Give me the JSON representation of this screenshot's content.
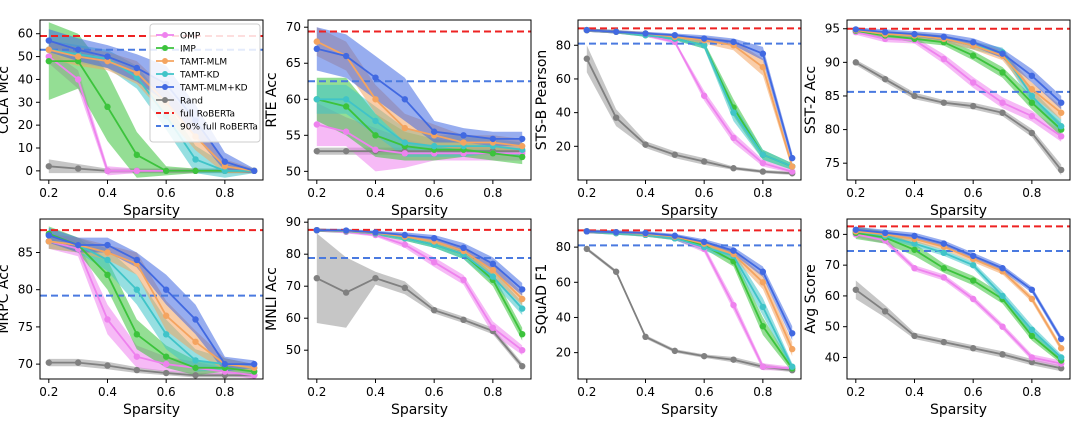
{
  "chart_data": {
    "type": "line",
    "shared_xlabel": "Sparsity",
    "x_ticks": [
      "0.2",
      "0.4",
      "0.6",
      "0.8"
    ],
    "series_names": [
      "OMP",
      "IMP",
      "TAMT-MLM",
      "TAMT-KD",
      "TAMT-MLM+KD",
      "Rand"
    ],
    "series_colors": [
      "#ee82ee",
      "#3cc33c",
      "#f4a460",
      "#40c4c8",
      "#4169e1",
      "#808080"
    ],
    "reference_lines": [
      {
        "name": "full RoBERTa",
        "color": "#ee2222"
      },
      {
        "name": "90% full RoBERTa",
        "color": "#4a7ae0"
      }
    ],
    "x": [
      0.2,
      0.3,
      0.4,
      0.5,
      0.6,
      0.7,
      0.8,
      0.9
    ],
    "panels": [
      {
        "id": "cola",
        "ylabel": "CoLA Mcc",
        "ylim": [
          -4,
          66
        ],
        "yticks": [
          "0",
          "10",
          "20",
          "30",
          "40",
          "50",
          "60"
        ],
        "full": 59,
        "ninety": 53,
        "band_alpha": 0.55,
        "series": {
          "OMP": [
            50,
            40,
            0,
            0,
            0,
            0,
            0,
            0
          ],
          "IMP": [
            48,
            48,
            28,
            7,
            0,
            0,
            0,
            0
          ],
          "TAMT-MLM": [
            53,
            50,
            48,
            43,
            30,
            15,
            2,
            0
          ],
          "TAMT-KD": [
            53,
            51,
            49,
            41,
            24,
            5,
            0,
            0
          ],
          "TAMT-MLM+KD": [
            57,
            53,
            50,
            45,
            38,
            22,
            4,
            0
          ],
          "Rand": [
            2,
            1,
            0,
            0,
            0,
            0,
            0,
            0
          ]
        },
        "bands": {
          "IMP": [
            17,
            12,
            15,
            10,
            2,
            1,
            1,
            1
          ],
          "TAMT-MLM+KD": [
            5,
            5,
            5,
            6,
            8,
            7,
            4,
            1
          ],
          "TAMT-MLM": [
            4,
            4,
            4,
            5,
            6,
            6,
            3,
            1
          ],
          "TAMT-KD": [
            4,
            4,
            4,
            5,
            6,
            6,
            3,
            1
          ],
          "OMP": [
            3,
            4,
            2,
            1,
            1,
            1,
            1,
            1
          ],
          "Rand": [
            3,
            2,
            1,
            1,
            1,
            1,
            1,
            1
          ]
        }
      },
      {
        "id": "rte",
        "ylabel": "RTE Acc",
        "ylim": [
          48.8,
          71
        ],
        "yticks": [
          "50",
          "55",
          "60",
          "65",
          "70"
        ],
        "full": 69.4,
        "ninety": 62.5,
        "band_alpha": 0.55,
        "series": {
          "OMP": [
            56.5,
            55.5,
            53,
            52.5,
            52.5,
            52.5,
            52.5,
            52.5
          ],
          "IMP": [
            60,
            59,
            55,
            53.5,
            53,
            53,
            52.5,
            52
          ],
          "TAMT-MLM": [
            68,
            66,
            60,
            56,
            55,
            54,
            54,
            53.5
          ],
          "TAMT-KD": [
            60,
            60,
            57,
            54,
            53.5,
            53.5,
            53.5,
            53
          ],
          "TAMT-MLM+KD": [
            67,
            66,
            63,
            60,
            55.5,
            55,
            54.5,
            54.5
          ],
          "Rand": [
            52.8,
            52.8,
            52.8,
            52.8,
            52.8,
            52.8,
            52.8,
            52.8
          ]
        },
        "bands": {
          "IMP": [
            3,
            4,
            3,
            2,
            1.5,
            1,
            1,
            1
          ],
          "TAMT-MLM+KD": [
            3,
            3,
            3,
            3,
            1.5,
            1,
            1,
            1
          ],
          "TAMT-MLM": [
            2,
            2,
            2,
            2,
            1.5,
            1,
            1,
            1
          ],
          "TAMT-KD": [
            2,
            2,
            2,
            2,
            1.5,
            1.5,
            1,
            1
          ],
          "OMP": [
            3,
            2,
            3,
            2,
            1,
            1,
            1,
            1
          ],
          "Rand": [
            0.5,
            0.5,
            0.5,
            0.5,
            0.5,
            0.5,
            0.5,
            0.5
          ]
        }
      },
      {
        "id": "stsb",
        "ylabel": "STS-B Pearson",
        "ylim": [
          0,
          95
        ],
        "yticks": [
          "20",
          "40",
          "60",
          "80"
        ],
        "full": 90,
        "ninety": 81,
        "band_alpha": 0.55,
        "series": {
          "OMP": [
            89,
            88,
            86,
            82,
            50,
            25,
            10,
            5
          ],
          "IMP": [
            89,
            88,
            86,
            84,
            80,
            43,
            15,
            8
          ],
          "TAMT-MLM": [
            89,
            88,
            87,
            85,
            83,
            80,
            67,
            8
          ],
          "TAMT-KD": [
            89,
            88,
            86,
            84,
            80,
            40,
            15,
            8
          ],
          "TAMT-MLM+KD": [
            89,
            88,
            87,
            86,
            84,
            82,
            75,
            13
          ],
          "Rand": [
            72,
            37,
            21,
            15,
            11,
            7,
            5,
            4
          ]
        },
        "bands": {
          "IMP": [
            1,
            1,
            1,
            1,
            2,
            5,
            3,
            2
          ],
          "TAMT-MLM+KD": [
            1,
            1,
            1,
            1,
            2,
            2,
            4,
            3
          ],
          "TAMT-MLM": [
            1,
            1,
            1,
            1,
            2,
            3,
            5,
            2
          ],
          "TAMT-KD": [
            1,
            1,
            1,
            1,
            2,
            5,
            3,
            2
          ],
          "OMP": [
            1,
            1,
            1,
            1,
            3,
            3,
            2,
            1
          ],
          "Rand": [
            8,
            5,
            2,
            2,
            2,
            1,
            1,
            1
          ]
        }
      },
      {
        "id": "sst2",
        "ylabel": "SST-2 Acc",
        "ylim": [
          72.5,
          96.3
        ],
        "yticks": [
          "75",
          "80",
          "85",
          "90",
          "95"
        ],
        "full": 95,
        "ninety": 85.6,
        "band_alpha": 0.55,
        "series": {
          "OMP": [
            94.5,
            93.5,
            93.3,
            90.5,
            87,
            84,
            82,
            79
          ],
          "IMP": [
            94.7,
            94,
            93.5,
            93,
            91,
            88.5,
            84,
            80
          ],
          "TAMT-MLM": [
            94.8,
            94.2,
            94,
            93.5,
            92.5,
            91,
            86,
            82.5
          ],
          "TAMT-KD": [
            94.8,
            94.2,
            94,
            93.5,
            92.5,
            91.5,
            85,
            80.5
          ],
          "TAMT-MLM+KD": [
            94.9,
            94.5,
            94.2,
            93.8,
            93,
            91.3,
            88,
            84
          ],
          "Rand": [
            90,
            87.5,
            85,
            84,
            83.5,
            82.5,
            79.5,
            74
          ]
        },
        "bands": {
          "IMP": [
            0.4,
            0.4,
            0.5,
            0.5,
            0.7,
            0.8,
            1,
            1
          ],
          "TAMT-MLM+KD": [
            0.3,
            0.4,
            0.4,
            0.5,
            0.6,
            0.7,
            1,
            1
          ],
          "TAMT-MLM": [
            0.3,
            0.4,
            0.4,
            0.5,
            0.6,
            0.7,
            1,
            1
          ],
          "TAMT-KD": [
            0.3,
            0.4,
            0.4,
            0.5,
            0.6,
            0.7,
            1,
            1
          ],
          "OMP": [
            0.4,
            0.5,
            0.5,
            0.7,
            0.8,
            0.8,
            0.8,
            0.8
          ],
          "Rand": [
            0.4,
            0.5,
            0.5,
            0.4,
            0.5,
            0.5,
            0.6,
            0.8
          ]
        }
      },
      {
        "id": "mrpc",
        "ylabel": "MRPC Acc",
        "ylim": [
          68,
          89.5
        ],
        "yticks": [
          "70",
          "75",
          "80",
          "85"
        ],
        "full": 88,
        "ninety": 79.2,
        "band_alpha": 0.55,
        "series": {
          "OMP": [
            86.5,
            85.5,
            76,
            71,
            70,
            69.5,
            69,
            68.5
          ],
          "IMP": [
            87.5,
            86,
            82,
            74,
            71,
            69.5,
            69.5,
            69
          ],
          "TAMT-MLM": [
            86.5,
            86,
            85,
            83.5,
            76.5,
            73,
            70,
            69.5
          ],
          "TAMT-KD": [
            86.5,
            86,
            84,
            80,
            74,
            70.5,
            70,
            69.5
          ],
          "TAMT-MLM+KD": [
            87.3,
            86,
            86,
            84,
            80,
            76,
            70,
            70
          ],
          "Rand": [
            70.2,
            70.2,
            69.8,
            69.2,
            68.8,
            68.5,
            68.5,
            68.5
          ]
        },
        "bands": {
          "IMP": [
            1,
            1,
            2,
            2,
            1.5,
            1,
            0.5,
            0.5
          ],
          "TAMT-MLM+KD": [
            1,
            1,
            1,
            1,
            2,
            2,
            1,
            0.5
          ],
          "TAMT-MLM": [
            1,
            1,
            1,
            1.5,
            2,
            1.5,
            0.8,
            0.5
          ],
          "TAMT-KD": [
            1,
            1,
            1.5,
            2,
            2,
            1.5,
            0.8,
            0.5
          ],
          "OMP": [
            1,
            1,
            2,
            1.5,
            1,
            0.8,
            0.5,
            0.5
          ],
          "Rand": [
            0.5,
            0.5,
            0.5,
            0.4,
            0.3,
            0.3,
            0.3,
            0.3
          ]
        }
      },
      {
        "id": "mnli",
        "ylabel": "MNLI Acc",
        "ylim": [
          41,
          91
        ],
        "yticks": [
          "50",
          "60",
          "70",
          "80",
          "90"
        ],
        "full": 87.6,
        "ninety": 78.8,
        "band_alpha": 0.55,
        "series": {
          "OMP": [
            87.5,
            87,
            86,
            83,
            77.5,
            72,
            57,
            50
          ],
          "IMP": [
            87.5,
            87.2,
            86.5,
            85,
            83,
            80,
            72,
            55
          ],
          "TAMT-MLM": [
            87.5,
            87.3,
            86.7,
            85.5,
            84,
            81,
            75,
            66
          ],
          "TAMT-KD": [
            87.5,
            87.2,
            86.5,
            85,
            83,
            80,
            73,
            63
          ],
          "TAMT-MLM+KD": [
            87.5,
            87.4,
            86.8,
            86,
            85,
            82,
            77,
            69
          ],
          "Rand": [
            72.5,
            68,
            72.5,
            69.5,
            62.5,
            59.5,
            56,
            45
          ]
        },
        "bands": {
          "IMP": [
            0.5,
            0.5,
            0.5,
            0.8,
            1,
            1.5,
            2,
            2
          ],
          "TAMT-MLM+KD": [
            0.5,
            0.5,
            0.5,
            0.8,
            1,
            1.5,
            2,
            2
          ],
          "TAMT-MLM": [
            0.5,
            0.5,
            0.5,
            0.8,
            1,
            1.5,
            2,
            2
          ],
          "TAMT-KD": [
            0.5,
            0.5,
            0.5,
            0.8,
            1,
            1.5,
            2,
            2
          ],
          "OMP": [
            0.5,
            0.5,
            0.5,
            1,
            1.5,
            1.5,
            2,
            1.5
          ],
          "Rand": [
            14,
            11,
            2,
            2,
            1,
            1,
            1,
            1
          ]
        }
      },
      {
        "id": "squad",
        "ylabel": "SQuAD F1",
        "ylim": [
          5,
          96
        ],
        "yticks": [
          "20",
          "40",
          "60",
          "80"
        ],
        "full": 89.5,
        "ninety": 81,
        "band_alpha": 0.55,
        "series": {
          "OMP": [
            89,
            88,
            87,
            85,
            79,
            47,
            12,
            11
          ],
          "IMP": [
            89,
            88,
            87,
            85,
            81,
            72,
            35,
            11
          ],
          "TAMT-MLM": [
            89,
            88.5,
            87.5,
            86,
            82,
            76,
            60,
            22
          ],
          "TAMT-KD": [
            89,
            88,
            87,
            85,
            80,
            75,
            46,
            12
          ],
          "TAMT-MLM+KD": [
            89,
            88.5,
            88,
            86.5,
            83,
            78,
            66,
            31
          ],
          "Rand": [
            79,
            66,
            29,
            21,
            18,
            16,
            12,
            10
          ]
        },
        "bands": {
          "IMP": [
            1,
            1,
            1,
            1,
            2,
            3,
            5,
            2
          ],
          "TAMT-MLM+KD": [
            1,
            1,
            1,
            1,
            1.5,
            2,
            3,
            4
          ],
          "TAMT-MLM": [
            1,
            1,
            1,
            1,
            1.5,
            2,
            4,
            4
          ],
          "TAMT-KD": [
            1,
            1,
            1,
            1,
            2,
            3,
            5,
            2
          ],
          "OMP": [
            1,
            1,
            1,
            1,
            2,
            3,
            2,
            1
          ],
          "Rand": [
            1,
            1,
            1,
            1,
            1,
            1.5,
            1.5,
            1
          ]
        }
      },
      {
        "id": "avg",
        "ylabel": "Avg Score",
        "ylim": [
          33,
          85
        ],
        "yticks": [
          "40",
          "50",
          "60",
          "70",
          "80"
        ],
        "full": 82.6,
        "ninety": 74.6,
        "band_alpha": 0.55,
        "series": {
          "OMP": [
            80,
            78,
            69,
            66,
            59,
            50,
            40,
            38
          ],
          "IMP": [
            80.5,
            79,
            75,
            69,
            65,
            59,
            47,
            39
          ],
          "TAMT-MLM": [
            81,
            80,
            78.5,
            76,
            72,
            68,
            59,
            43
          ],
          "TAMT-KD": [
            81,
            79.5,
            77,
            74,
            70,
            60,
            49,
            40
          ],
          "TAMT-MLM+KD": [
            81.5,
            80.5,
            79.5,
            77,
            73,
            69,
            62,
            46
          ],
          "Rand": [
            62,
            55,
            47,
            45,
            43,
            41,
            38.5,
            36.5
          ]
        },
        "bands": {
          "IMP": [
            2,
            2,
            2,
            1.5,
            1.5,
            1.5,
            1.5,
            1
          ],
          "TAMT-MLM+KD": [
            1,
            1,
            1,
            1,
            1,
            1,
            1,
            1
          ],
          "TAMT-MLM": [
            1,
            1,
            1,
            1,
            1,
            1,
            1,
            1
          ],
          "TAMT-KD": [
            1,
            1,
            1,
            1,
            1,
            1.5,
            1.5,
            1
          ],
          "OMP": [
            1,
            1,
            1,
            1,
            1,
            1,
            1,
            1
          ],
          "Rand": [
            3,
            2,
            1,
            1,
            1,
            1,
            1,
            1
          ]
        }
      }
    ]
  }
}
